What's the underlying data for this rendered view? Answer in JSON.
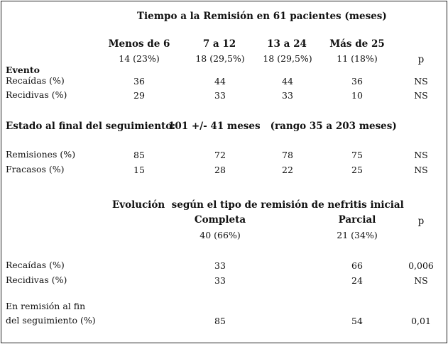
{
  "section1": {
    "title": "Tiempo a la Remisión en 61 pacientes (meses)",
    "columns": [
      {
        "label": "Menos de 6",
        "count": "14 (23%)"
      },
      {
        "label": "7 a 12",
        "count": "18 (29,5%)"
      },
      {
        "label": "13 a 24",
        "count": "18 (29,5%)"
      },
      {
        "label": "Más de 25",
        "count": "11 (18%)"
      }
    ],
    "p_header": "p",
    "event_label": "Evento",
    "rows": [
      {
        "label": "Recaídas (%)",
        "values": [
          "36",
          "44",
          "44",
          "36"
        ],
        "p": "NS"
      },
      {
        "label": "Recidivas (%)",
        "values": [
          "29",
          "33",
          "33",
          "10"
        ],
        "p": "NS"
      }
    ]
  },
  "section2": {
    "label": "Estado al final del seguimiento:",
    "detail": "101 +/- 41 meses   (rango 35 a 203 meses)",
    "rows": [
      {
        "label": "Remisiones (%)",
        "values": [
          "85",
          "72",
          "78",
          "75"
        ],
        "p": "NS"
      },
      {
        "label": "Fracasos (%)",
        "values": [
          "15",
          "28",
          "22",
          "25"
        ],
        "p": "NS"
      }
    ]
  },
  "section3": {
    "title": "Evolución  según el tipo de remisión de nefritis inicial",
    "columns": [
      {
        "label": "Completa",
        "count": "40 (66%)"
      },
      {
        "label": "Parcial",
        "count": "21 (34%)"
      }
    ],
    "p_header": "p",
    "rows": [
      {
        "label": "Recaídas (%)",
        "values": [
          "33",
          "66"
        ],
        "p": "0,006"
      },
      {
        "label": "Recidivas (%)",
        "values": [
          "33",
          "24"
        ],
        "p": "NS"
      }
    ],
    "remission_row": {
      "label_line1": "En remisión al fin",
      "label_line2": "del seguimiento (%)",
      "values": [
        "85",
        "54"
      ],
      "p": "0,01"
    }
  }
}
